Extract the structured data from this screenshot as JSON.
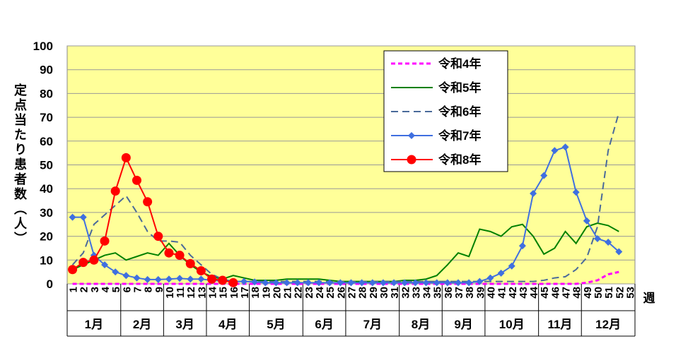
{
  "chart_data": {
    "type": "line",
    "y_label": "定点当たり患者数（人）",
    "x_label": "週",
    "categories": [
      "1",
      "2",
      "3",
      "4",
      "5",
      "6",
      "7",
      "8",
      "9",
      "10",
      "11",
      "12",
      "13",
      "14",
      "15",
      "16",
      "17",
      "18",
      "19",
      "20",
      "21",
      "22",
      "23",
      "24",
      "25",
      "26",
      "27",
      "28",
      "29",
      "30",
      "31",
      "32",
      "33",
      "34",
      "35",
      "36",
      "37",
      "38",
      "39",
      "40",
      "41",
      "42",
      "43",
      "44",
      "45",
      "46",
      "47",
      "48",
      "49",
      "50",
      "51",
      "52",
      "53"
    ],
    "months": [
      "1月",
      "2月",
      "3月",
      "4月",
      "5月",
      "6月",
      "7月",
      "8月",
      "9月",
      "10月",
      "11月",
      "12月"
    ],
    "ylim": [
      0,
      100
    ],
    "yticks": [
      0,
      10,
      20,
      30,
      40,
      50,
      60,
      70,
      80,
      90,
      100
    ],
    "grid": true,
    "background": "#ffff99",
    "series": [
      {
        "name": "令和4年",
        "color": "#ff00ff",
        "line_style": "dotted",
        "marker": "none",
        "values": [
          0,
          0,
          0,
          0,
          0,
          0,
          0,
          0,
          0,
          0,
          0,
          0,
          0,
          0,
          0,
          0,
          0,
          0,
          0,
          0,
          0,
          0,
          0,
          0,
          0,
          0,
          0,
          0,
          0,
          0,
          0,
          0,
          0,
          0,
          0,
          0,
          0,
          0,
          0,
          0,
          0,
          0,
          0,
          0,
          0,
          0,
          0,
          0,
          0.5,
          1.5,
          4,
          5,
          null
        ]
      },
      {
        "name": "令和5年",
        "color": "#008000",
        "line_style": "solid",
        "marker": "none",
        "values": [
          6,
          8,
          10,
          12,
          13,
          10,
          11.5,
          13,
          12,
          17,
          12,
          8,
          5,
          3,
          2,
          3.5,
          2.5,
          1.5,
          1.5,
          1.5,
          2,
          2,
          2,
          2,
          1.5,
          1,
          1,
          1,
          1,
          1,
          1,
          1.5,
          1.5,
          2,
          3.5,
          8,
          13,
          11.5,
          23,
          22,
          20,
          24,
          25,
          20,
          12.5,
          15,
          22,
          17,
          24,
          25.5,
          24.5,
          22,
          null
        ]
      },
      {
        "name": "令和6年",
        "color": "#4a6a9a",
        "line_style": "dashed",
        "marker": "none",
        "values": [
          8,
          13,
          25,
          29,
          33,
          37,
          30,
          22,
          18,
          18,
          17.5,
          12,
          8,
          4,
          2,
          1,
          1,
          1,
          1,
          1,
          1,
          1,
          1,
          1,
          1,
          1,
          1,
          1,
          1,
          1,
          1,
          1,
          1,
          1,
          1,
          1,
          1,
          1,
          1,
          1,
          1,
          1,
          1,
          1,
          1.5,
          2.5,
          3,
          6,
          11,
          24,
          56,
          72,
          null
        ]
      },
      {
        "name": "令和7年",
        "color": "#3f6fe0",
        "line_style": "solid",
        "marker": "diamond",
        "values": [
          28,
          28,
          12,
          8,
          5,
          3.5,
          2.5,
          1.8,
          1.8,
          2,
          2.3,
          2,
          2,
          1.5,
          1.2,
          1,
          1,
          0.8,
          0.5,
          0.5,
          0.5,
          0.5,
          0.5,
          0.5,
          0.5,
          0.5,
          0.5,
          0.5,
          0.5,
          0.5,
          0.5,
          0.5,
          0.5,
          0.5,
          0.5,
          0.5,
          0.5,
          0.5,
          1,
          2.5,
          4.5,
          7.5,
          16,
          38,
          45.5,
          56,
          57.5,
          38.5,
          26.5,
          19,
          17.5,
          13.5,
          null
        ]
      },
      {
        "name": "令和8年",
        "color": "#ff0000",
        "line_style": "solid",
        "marker": "circle",
        "values": [
          6,
          9,
          10,
          18,
          39,
          53,
          43.5,
          34.5,
          20,
          13,
          12,
          8.5,
          5.5,
          2,
          1.5,
          0.5,
          null,
          null,
          null,
          null,
          null,
          null,
          null,
          null,
          null,
          null,
          null,
          null,
          null,
          null,
          null,
          null,
          null,
          null,
          null,
          null,
          null,
          null,
          null,
          null,
          null,
          null,
          null,
          null,
          null,
          null,
          null,
          null,
          null,
          null,
          null,
          null,
          null
        ]
      }
    ]
  }
}
